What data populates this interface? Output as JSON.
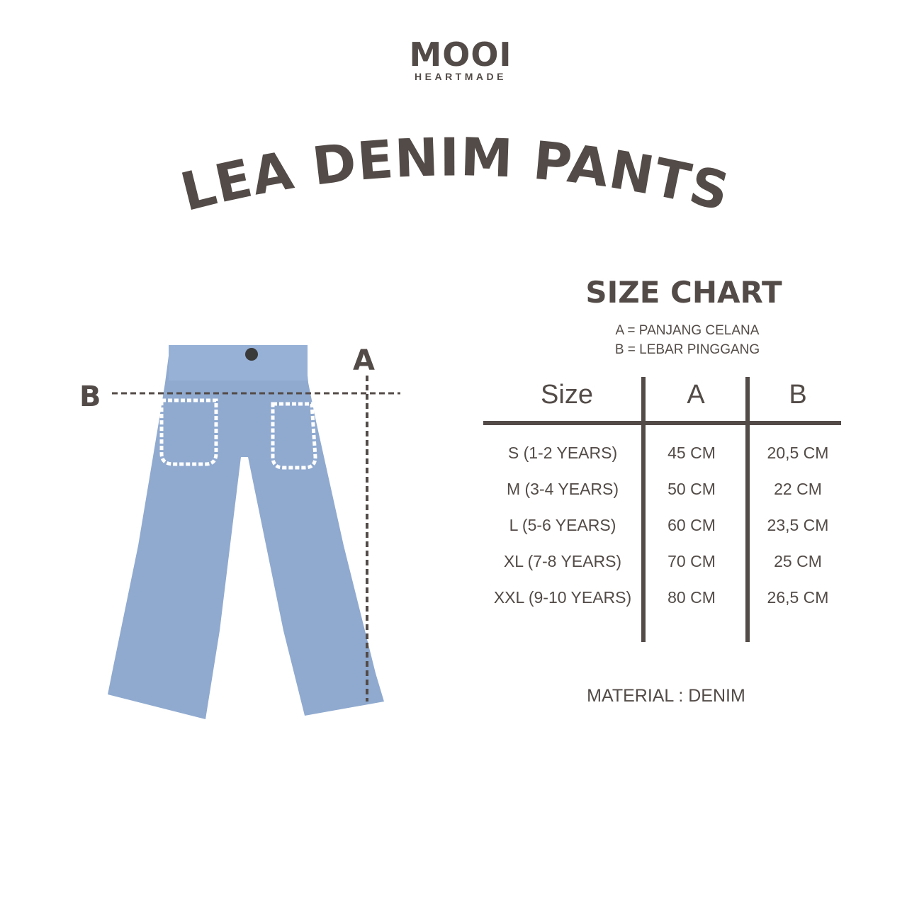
{
  "brand": {
    "name": "MOOI",
    "tagline": "HEARTMADE"
  },
  "product_title": "LEA DENIM PANTS",
  "size_chart": {
    "title": "SIZE CHART",
    "legend": [
      "A = PANJANG CELANA",
      "B = LEBAR PINGGANG"
    ],
    "headers": [
      "Size",
      "A",
      "B"
    ],
    "rows": [
      [
        "S (1-2 YEARS)",
        "45 CM",
        "20,5 CM"
      ],
      [
        "M (3-4 YEARS)",
        "50 CM",
        "22 CM"
      ],
      [
        "L (5-6 YEARS)",
        "60 CM",
        "23,5 CM"
      ],
      [
        "XL (7-8 YEARS)",
        "70 CM",
        "25 CM"
      ],
      [
        "XXL (9-10 YEARS)",
        "80 CM",
        "26,5 CM"
      ]
    ]
  },
  "diagram": {
    "label_a": "A",
    "label_b": "B"
  },
  "material": "MATERIAL : DENIM",
  "colors": {
    "text": "#524b47",
    "denim": "#8fa9cf"
  }
}
